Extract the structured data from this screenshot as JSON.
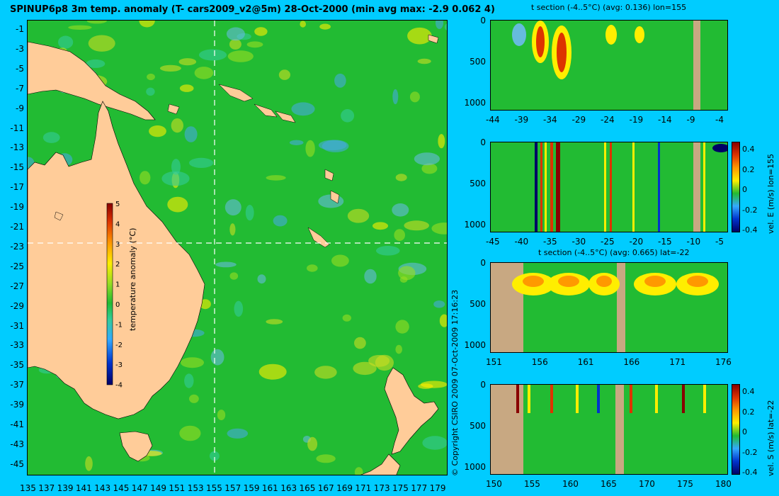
{
  "title": "SPINUP6p8 3m temp. anomaly (T- cars2009_v2@5m) 28-Oct-2000 (min avg max: -2.9 0.062 4)",
  "copyright": "© Copyright CSIRO 2009   07-Oct-2009 17:16:23",
  "colors": {
    "background": "#00ccff",
    "land": "#ffcc99",
    "section_land": "#c8a882",
    "anomaly_green": "#22bb33",
    "crosshair": "#ffffff"
  },
  "chart_data": [
    {
      "type": "heatmap",
      "name": "map",
      "title": "SPINUP6p8 3m temp. anomaly (T- cars2009_v2@5m) 28-Oct-2000 (min avg max: -2.9 0.062 4)",
      "xlabel": "",
      "ylabel": "",
      "xlim": [
        134.7,
        180
      ],
      "ylim": [
        -45,
        0
      ],
      "xticks": [
        "135",
        "137",
        "139",
        "141",
        "143",
        "145",
        "147",
        "149",
        "151",
        "153",
        "155",
        "157",
        "159",
        "161",
        "163",
        "165",
        "167",
        "169",
        "171",
        "173",
        "175",
        "177",
        "179"
      ],
      "yticks": [
        "-1",
        "-3",
        "-5",
        "-7",
        "-9",
        "-11",
        "-13",
        "-15",
        "-17",
        "-19",
        "-21",
        "-23",
        "-25",
        "-27",
        "-29",
        "-31",
        "-33",
        "-35",
        "-37",
        "-39",
        "-41",
        "-43",
        "-45"
      ],
      "crosshair": {
        "lon": 155,
        "lat": -22
      },
      "colorbar": {
        "label": "temperature anomaly (°C)",
        "range": [
          -4,
          5
        ],
        "ticks": [
          "5",
          "4",
          "3",
          "2",
          "1",
          "0",
          "-1",
          "-2",
          "-3",
          "-4"
        ]
      },
      "stats": {
        "min": -2.9,
        "avg": 0.062,
        "max": 4
      }
    },
    {
      "type": "heatmap",
      "name": "t-section-lon155",
      "title": "t section (-4..5°C) (avg: 0.136) lon=155",
      "xlim": [
        -45,
        -1
      ],
      "ylim": [
        1050,
        0
      ],
      "xticks": [
        "-44",
        "-39",
        "-34",
        "-29",
        "-24",
        "-19",
        "-14",
        "-9",
        "-4"
      ],
      "yticks": [
        "0",
        "500",
        "1000"
      ]
    },
    {
      "type": "heatmap",
      "name": "vel-e-section-lon155",
      "title": "",
      "xlim": [
        -45,
        -1
      ],
      "ylim": [
        1050,
        0
      ],
      "xticks": [
        "-45",
        "-40",
        "-35",
        "-30",
        "-25",
        "-20",
        "-15",
        "-10",
        "-5"
      ],
      "yticks": [
        "0",
        "500",
        "1000"
      ],
      "colorbar": {
        "label": "vel. E (m/s) lon=155",
        "range": [
          -0.4,
          0.45
        ],
        "ticks": [
          "0.4",
          "0.2",
          "0",
          "-0.2",
          "-0.4"
        ]
      }
    },
    {
      "type": "heatmap",
      "name": "t-section-lat-22",
      "title": "t section (-4..5°C) (avg: 0.665) lat=-22",
      "xlim": [
        150,
        180
      ],
      "ylim": [
        1050,
        0
      ],
      "xticks": [
        "151",
        "156",
        "161",
        "166",
        "171",
        "176"
      ],
      "yticks": [
        "0",
        "500",
        "1000"
      ]
    },
    {
      "type": "heatmap",
      "name": "vel-s-section-lat-22",
      "title": "",
      "xlim": [
        150,
        180
      ],
      "ylim": [
        1050,
        0
      ],
      "xticks": [
        "150",
        "155",
        "160",
        "165",
        "170",
        "175",
        "180"
      ],
      "yticks": [
        "0",
        "500",
        "1000"
      ],
      "colorbar": {
        "label": "vel. S (m/s) lat=-22",
        "range": [
          -0.4,
          0.45
        ],
        "ticks": [
          "0.4",
          "0.2",
          "0",
          "-0.2",
          "-0.4"
        ]
      }
    }
  ]
}
